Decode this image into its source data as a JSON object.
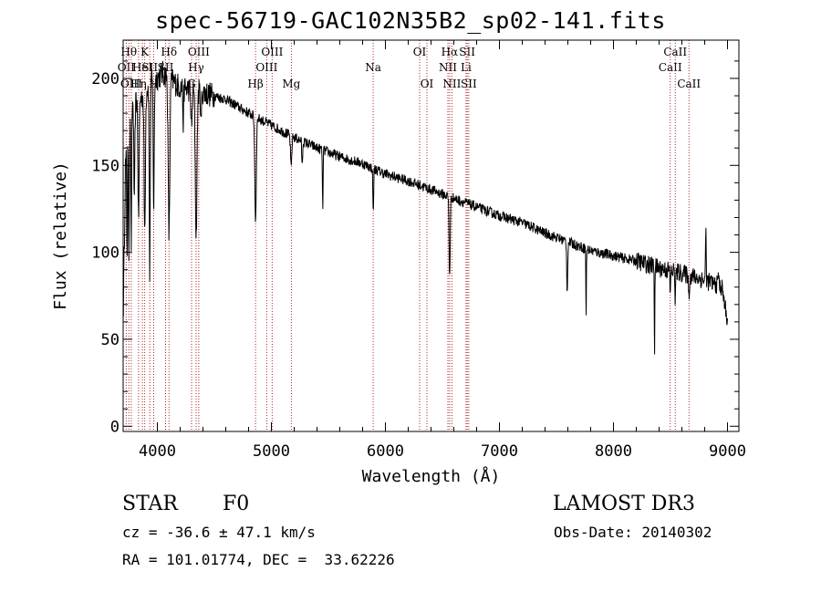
{
  "chart_data": {
    "type": "line",
    "title": "spec-56719-GAC102N35B2_sp02-141.fits",
    "xlabel": "Wavelength (Å)",
    "ylabel": "Flux (relative)",
    "xlim": [
      3700,
      9100
    ],
    "ylim": [
      -3,
      222
    ],
    "xticks": [
      4000,
      5000,
      6000,
      7000,
      8000,
      9000
    ],
    "yticks": [
      0,
      50,
      100,
      150,
      200
    ],
    "continuum": [
      [
        3700,
        60
      ],
      [
        3720,
        150
      ],
      [
        3780,
        185
      ],
      [
        3850,
        188
      ],
      [
        3950,
        198
      ],
      [
        4050,
        203
      ],
      [
        4200,
        195
      ],
      [
        4400,
        192
      ],
      [
        4600,
        188
      ],
      [
        4800,
        180
      ],
      [
        5000,
        173
      ],
      [
        5200,
        166
      ],
      [
        5400,
        160
      ],
      [
        5600,
        155
      ],
      [
        5800,
        151
      ],
      [
        6000,
        145
      ],
      [
        6200,
        141
      ],
      [
        6400,
        136
      ],
      [
        6600,
        131
      ],
      [
        6800,
        126
      ],
      [
        7000,
        121
      ],
      [
        7200,
        117
      ],
      [
        7400,
        111
      ],
      [
        7600,
        106
      ],
      [
        7800,
        101
      ],
      [
        8000,
        98
      ],
      [
        8200,
        95
      ],
      [
        8400,
        91
      ],
      [
        8600,
        88
      ],
      [
        8800,
        84
      ],
      [
        8950,
        80
      ],
      [
        9000,
        60
      ]
    ],
    "absorption": [
      {
        "x": 3734,
        "depth": 60,
        "width": 4
      },
      {
        "x": 3750,
        "depth": 70,
        "width": 5
      },
      {
        "x": 3771,
        "depth": 75,
        "width": 5
      },
      {
        "x": 3798,
        "depth": 60,
        "width": 6
      },
      {
        "x": 3835,
        "depth": 70,
        "width": 7
      },
      {
        "x": 3889,
        "depth": 80,
        "width": 8
      },
      {
        "x": 3933,
        "depth": 110,
        "width": 6
      },
      {
        "x": 3968,
        "depth": 75,
        "width": 6
      },
      {
        "x": 4102,
        "depth": 90,
        "width": 10
      },
      {
        "x": 4227,
        "depth": 20,
        "width": 5
      },
      {
        "x": 4300,
        "depth": 22,
        "width": 8
      },
      {
        "x": 4340,
        "depth": 85,
        "width": 10
      },
      {
        "x": 4383,
        "depth": 20,
        "width": 5
      },
      {
        "x": 4861,
        "depth": 60,
        "width": 9
      },
      {
        "x": 5173,
        "depth": 18,
        "width": 8
      },
      {
        "x": 5270,
        "depth": 15,
        "width": 5
      },
      {
        "x": 5450,
        "depth": 35,
        "width": 4
      },
      {
        "x": 5893,
        "depth": 25,
        "width": 5
      },
      {
        "x": 6563,
        "depth": 45,
        "width": 7
      },
      {
        "x": 7594,
        "depth": 28,
        "width": 6
      },
      {
        "x": 7760,
        "depth": 45,
        "width": 3
      },
      {
        "x": 8360,
        "depth": 52,
        "width": 3
      },
      {
        "x": 8498,
        "depth": 12,
        "width": 5
      },
      {
        "x": 8542,
        "depth": 15,
        "width": 5
      },
      {
        "x": 8662,
        "depth": 13,
        "width": 5
      }
    ],
    "emission": [
      {
        "x": 8810,
        "height": 30,
        "width": 4
      },
      {
        "x": 8920,
        "height": 10,
        "width": 4
      }
    ],
    "noise": 3,
    "line_markers": [
      {
        "x": 3727,
        "label": "OII",
        "row": 2
      },
      {
        "x": 3750,
        "label": "Hθ",
        "row": 1
      },
      {
        "x": 3771,
        "label": "OIII",
        "row": 3
      },
      {
        "x": 3835,
        "label": "Hη",
        "row": 3
      },
      {
        "x": 3869,
        "label": "HeI",
        "row": 2
      },
      {
        "x": 3889,
        "label": "K",
        "row": 1
      },
      {
        "x": 3934,
        "label": "SII",
        "row": 2
      },
      {
        "x": 3968,
        "label": "H",
        "row": 3
      },
      {
        "x": 4072,
        "label": "SII",
        "row": 2
      },
      {
        "x": 4102,
        "label": "Hδ",
        "row": 1
      },
      {
        "x": 4300,
        "label": "G",
        "row": 3
      },
      {
        "x": 4340,
        "label": "Hγ",
        "row": 2
      },
      {
        "x": 4363,
        "label": "OIII",
        "row": 1
      },
      {
        "x": 4861,
        "label": "Hβ",
        "row": 3
      },
      {
        "x": 4959,
        "label": "OIII",
        "row": 2
      },
      {
        "x": 5007,
        "label": "OIII",
        "row": 1
      },
      {
        "x": 5175,
        "label": "Mg",
        "row": 3
      },
      {
        "x": 5893,
        "label": "Na",
        "row": 2
      },
      {
        "x": 6300,
        "label": "OI",
        "row": 1
      },
      {
        "x": 6364,
        "label": "OI",
        "row": 3
      },
      {
        "x": 6548,
        "label": "NII",
        "row": 2
      },
      {
        "x": 6563,
        "label": "Hα",
        "row": 1
      },
      {
        "x": 6583,
        "label": "NII",
        "row": 3
      },
      {
        "x": 6707,
        "label": "Li",
        "row": 2
      },
      {
        "x": 6717,
        "label": "SII",
        "row": 1
      },
      {
        "x": 6731,
        "label": "SII",
        "row": 3
      },
      {
        "x": 8498,
        "label": "CaII",
        "row": 2
      },
      {
        "x": 8542,
        "label": "CaII",
        "row": 1
      },
      {
        "x": 8662,
        "label": "CaII",
        "row": 3
      }
    ],
    "colors": {
      "spectrum": "#000000",
      "marker": "#b22222",
      "axis": "#000000"
    }
  },
  "info": {
    "object_class": "STAR",
    "subclass": "F0",
    "survey": "LAMOST DR3",
    "redshift": "cz = -36.6 ± 47.1 km/s",
    "obs_date": "Obs-Date: 20140302",
    "coords": "RA = 101.01774, DEC =  33.62226"
  }
}
